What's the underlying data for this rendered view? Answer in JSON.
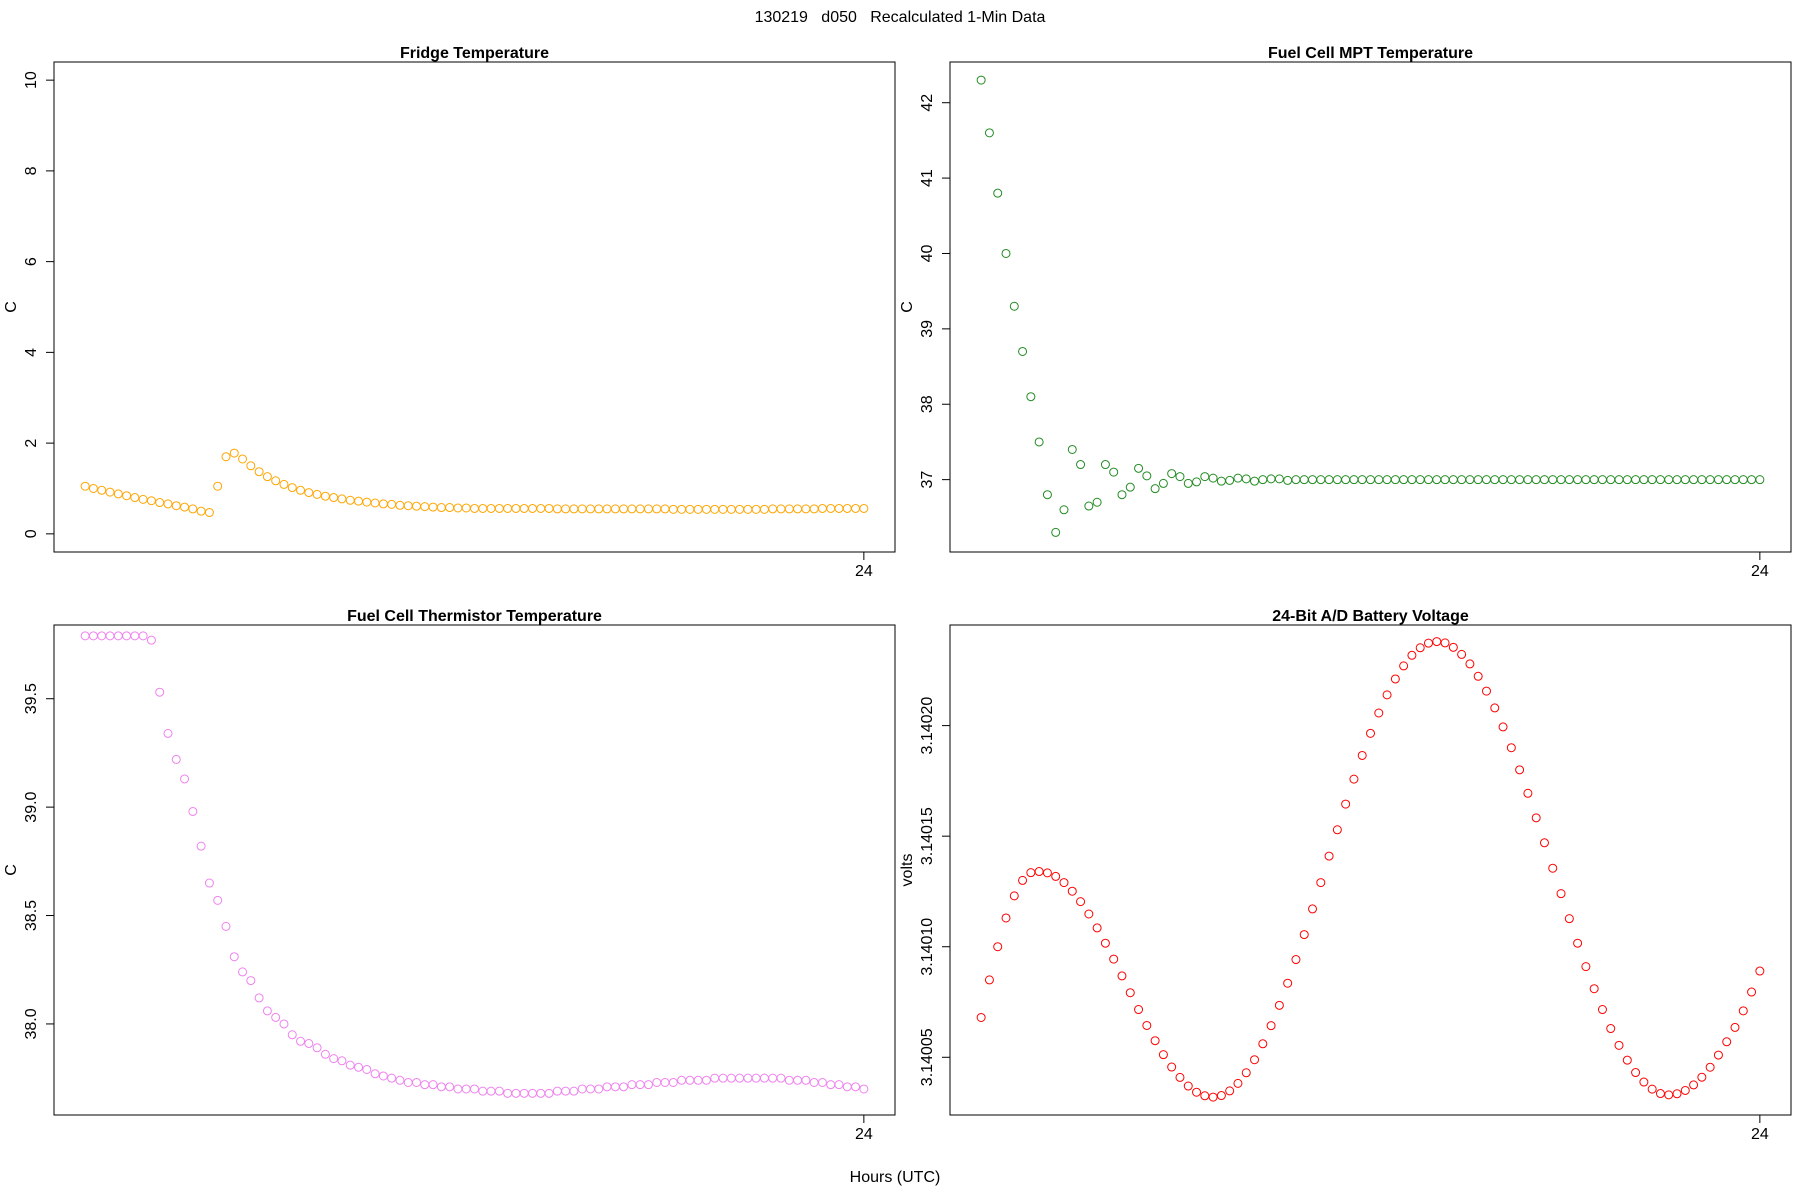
{
  "title": "130219   d050   Recalculated 1-Min Data",
  "xlabel": "Hours (UTC)",
  "chart_data": [
    {
      "type": "scatter",
      "title": "Fridge Temperature",
      "ylabel": "C",
      "color": "#ffa500",
      "xlim": [
        -0.44,
        24.94
      ],
      "xticks": [
        24
      ],
      "ylim": [
        -0.4,
        10.4
      ],
      "yticks": [
        0,
        2,
        4,
        6,
        8,
        10
      ],
      "x": [
        0.5,
        0.75,
        1,
        1.25,
        1.5,
        1.75,
        2,
        2.25,
        2.5,
        2.75,
        3,
        3.25,
        3.5,
        3.75,
        4,
        4.25,
        4.5,
        4.75,
        5,
        5.25,
        5.5,
        5.75,
        6,
        6.25,
        6.5,
        6.75,
        7,
        7.25,
        7.5,
        7.75,
        8,
        8.25,
        8.5,
        8.75,
        9,
        9.25,
        9.5,
        9.75,
        10,
        10.25,
        10.5,
        10.75,
        11,
        11.25,
        11.5,
        11.75,
        12,
        12.25,
        12.5,
        12.75,
        13,
        13.25,
        13.5,
        13.75,
        14,
        14.25,
        14.5,
        14.75,
        15,
        15.25,
        15.5,
        15.75,
        16,
        16.25,
        16.5,
        16.75,
        17,
        17.25,
        17.5,
        17.75,
        18,
        18.25,
        18.5,
        18.75,
        19,
        19.25,
        19.5,
        19.75,
        20,
        20.25,
        20.5,
        20.75,
        21,
        21.25,
        21.5,
        21.75,
        22,
        22.25,
        22.5,
        22.75,
        23,
        23.25,
        23.5,
        23.75,
        24
      ],
      "values": [
        1.05,
        1.0,
        0.96,
        0.92,
        0.88,
        0.84,
        0.8,
        0.76,
        0.73,
        0.69,
        0.66,
        0.62,
        0.59,
        0.55,
        0.5,
        0.47,
        1.05,
        1.7,
        1.78,
        1.65,
        1.5,
        1.37,
        1.26,
        1.17,
        1.09,
        1.02,
        0.96,
        0.91,
        0.87,
        0.83,
        0.8,
        0.77,
        0.74,
        0.72,
        0.7,
        0.68,
        0.66,
        0.65,
        0.63,
        0.62,
        0.61,
        0.6,
        0.59,
        0.58,
        0.58,
        0.57,
        0.57,
        0.56,
        0.56,
        0.56,
        0.56,
        0.56,
        0.56,
        0.56,
        0.56,
        0.56,
        0.56,
        0.55,
        0.55,
        0.55,
        0.55,
        0.55,
        0.55,
        0.55,
        0.55,
        0.55,
        0.55,
        0.55,
        0.55,
        0.55,
        0.55,
        0.54,
        0.54,
        0.54,
        0.54,
        0.54,
        0.54,
        0.54,
        0.54,
        0.54,
        0.54,
        0.54,
        0.54,
        0.55,
        0.55,
        0.55,
        0.55,
        0.55,
        0.55,
        0.56,
        0.56,
        0.56,
        0.56,
        0.56,
        0.56
      ]
    },
    {
      "type": "scatter",
      "title": "Fuel Cell MPT Temperature",
      "ylabel": "C",
      "color": "#228b22",
      "xlim": [
        -0.44,
        24.94
      ],
      "xticks": [
        24
      ],
      "ylim": [
        36.04,
        42.54
      ],
      "yticks": [
        37,
        38,
        39,
        40,
        41,
        42
      ],
      "x": [
        0.5,
        0.75,
        1,
        1.25,
        1.5,
        1.75,
        2,
        2.25,
        2.5,
        2.75,
        3,
        3.25,
        3.5,
        3.75,
        4,
        4.25,
        4.5,
        4.75,
        5,
        5.25,
        5.5,
        5.75,
        6,
        6.25,
        6.5,
        6.75,
        7,
        7.25,
        7.5,
        7.75,
        8,
        8.25,
        8.5,
        8.75,
        9,
        9.25,
        9.5,
        9.75,
        10,
        10.25,
        10.5,
        10.75,
        11,
        11.25,
        11.5,
        11.75,
        12,
        12.25,
        12.5,
        12.75,
        13,
        13.25,
        13.5,
        13.75,
        14,
        14.25,
        14.5,
        14.75,
        15,
        15.25,
        15.5,
        15.75,
        16,
        16.25,
        16.5,
        16.75,
        17,
        17.25,
        17.5,
        17.75,
        18,
        18.25,
        18.5,
        18.75,
        19,
        19.25,
        19.5,
        19.75,
        20,
        20.25,
        20.5,
        20.75,
        21,
        21.25,
        21.5,
        21.75,
        22,
        22.25,
        22.5,
        22.75,
        23,
        23.25,
        23.5,
        23.75,
        24
      ],
      "values": [
        42.3,
        41.6,
        40.8,
        40.0,
        39.3,
        38.7,
        38.1,
        37.5,
        36.8,
        36.3,
        36.6,
        37.4,
        37.2,
        36.65,
        36.7,
        37.2,
        37.1,
        36.8,
        36.9,
        37.15,
        37.05,
        36.88,
        36.95,
        37.08,
        37.04,
        36.95,
        36.97,
        37.04,
        37.02,
        36.98,
        36.99,
        37.02,
        37.01,
        36.98,
        37.0,
        37.01,
        37.01,
        36.99,
        37.0,
        37,
        37,
        37,
        37,
        37,
        37,
        37,
        37,
        37,
        37,
        37,
        37,
        37,
        37,
        37,
        37,
        37,
        37,
        37,
        37,
        37,
        37,
        37,
        37,
        37,
        37,
        37,
        37,
        37,
        37,
        37,
        37,
        37,
        37,
        37,
        37,
        37,
        37,
        37,
        37,
        37,
        37,
        37,
        37,
        37,
        37,
        37,
        37,
        37,
        37,
        37,
        37,
        37,
        37,
        37,
        37
      ]
    },
    {
      "type": "scatter",
      "title": "Fuel Cell Thermistor Temperature",
      "ylabel": "C",
      "color": "#ee82ee",
      "xlim": [
        -0.44,
        24.94
      ],
      "xticks": [
        24
      ],
      "ylim": [
        37.58,
        39.84
      ],
      "yticks": [
        {
          "value": 38,
          "label": "38.0"
        },
        38.5,
        {
          "value": 39,
          "label": "39.0"
        },
        39.5
      ],
      "x": [
        0.5,
        0.75,
        1,
        1.25,
        1.5,
        1.75,
        2,
        2.25,
        2.5,
        2.75,
        3,
        3.25,
        3.5,
        3.75,
        4,
        4.25,
        4.5,
        4.75,
        5,
        5.25,
        5.5,
        5.75,
        6,
        6.25,
        6.5,
        6.75,
        7,
        7.25,
        7.5,
        7.75,
        8,
        8.25,
        8.5,
        8.75,
        9,
        9.25,
        9.5,
        9.75,
        10,
        10.25,
        10.5,
        10.75,
        11,
        11.25,
        11.5,
        11.75,
        12,
        12.25,
        12.5,
        12.75,
        13,
        13.25,
        13.5,
        13.75,
        14,
        14.25,
        14.5,
        14.75,
        15,
        15.25,
        15.5,
        15.75,
        16,
        16.25,
        16.5,
        16.75,
        17,
        17.25,
        17.5,
        17.75,
        18,
        18.25,
        18.5,
        18.75,
        19,
        19.25,
        19.5,
        19.75,
        20,
        20.25,
        20.5,
        20.75,
        21,
        21.25,
        21.5,
        21.75,
        22,
        22.25,
        22.5,
        22.75,
        23,
        23.25,
        23.5,
        23.75,
        24
      ],
      "values": [
        39.79,
        39.79,
        39.79,
        39.79,
        39.79,
        39.79,
        39.79,
        39.79,
        39.77,
        39.53,
        39.34,
        39.22,
        39.13,
        38.98,
        38.82,
        38.65,
        38.57,
        38.45,
        38.31,
        38.24,
        38.2,
        38.12,
        38.06,
        38.03,
        38.0,
        37.95,
        37.92,
        37.91,
        37.89,
        37.86,
        37.84,
        37.83,
        37.81,
        37.8,
        37.79,
        37.77,
        37.76,
        37.75,
        37.74,
        37.73,
        37.73,
        37.72,
        37.72,
        37.71,
        37.71,
        37.7,
        37.7,
        37.7,
        37.69,
        37.69,
        37.69,
        37.68,
        37.68,
        37.68,
        37.68,
        37.68,
        37.68,
        37.69,
        37.69,
        37.69,
        37.7,
        37.7,
        37.7,
        37.71,
        37.71,
        37.71,
        37.72,
        37.72,
        37.72,
        37.73,
        37.73,
        37.73,
        37.74,
        37.74,
        37.74,
        37.74,
        37.75,
        37.75,
        37.75,
        37.75,
        37.75,
        37.75,
        37.75,
        37.75,
        37.75,
        37.74,
        37.74,
        37.74,
        37.73,
        37.73,
        37.72,
        37.72,
        37.71,
        37.71,
        37.7
      ]
    },
    {
      "type": "scatter",
      "title": "24-Bit A/D Battery Voltage",
      "ylabel": "volts",
      "color": "#ff0000",
      "xlim": [
        -0.44,
        24.94
      ],
      "xticks": [
        24
      ],
      "ylim": [
        3.1400239,
        3.1402455
      ],
      "yticks": [
        3.14005,
        {
          "value": 3.1401,
          "label": "3.14010"
        },
        3.14015,
        {
          "value": 3.1402,
          "label": "3.14020"
        }
      ],
      "x": [
        0.5,
        0.75,
        1,
        1.25,
        1.5,
        1.75,
        2,
        2.25,
        2.5,
        2.75,
        3,
        3.25,
        3.5,
        3.75,
        4,
        4.25,
        4.5,
        4.75,
        5,
        5.25,
        5.5,
        5.75,
        6,
        6.25,
        6.5,
        6.75,
        7,
        7.25,
        7.5,
        7.75,
        8,
        8.25,
        8.5,
        8.75,
        9,
        9.25,
        9.5,
        9.75,
        10,
        10.25,
        10.5,
        10.75,
        11,
        11.25,
        11.5,
        11.75,
        12,
        12.25,
        12.5,
        12.75,
        13,
        13.25,
        13.5,
        13.75,
        14,
        14.25,
        14.5,
        14.75,
        15,
        15.25,
        15.5,
        15.75,
        16,
        16.25,
        16.5,
        16.75,
        17,
        17.25,
        17.5,
        17.75,
        18,
        18.25,
        18.5,
        18.75,
        19,
        19.25,
        19.5,
        19.75,
        20,
        20.25,
        20.5,
        20.75,
        21,
        21.25,
        21.5,
        21.75,
        22,
        22.25,
        22.5,
        22.75,
        23,
        23.25,
        23.5,
        23.75,
        24
      ],
      "values": [
        3.140068,
        3.140085,
        3.1401,
        3.140113,
        3.140123,
        3.14013,
        3.1401335,
        3.140134,
        3.1401334,
        3.1401318,
        3.140129,
        3.1401251,
        3.1401204,
        3.1401148,
        3.1401085,
        3.1401016,
        3.1400944,
        3.1400868,
        3.1400792,
        3.1400716,
        3.1400644,
        3.1400575,
        3.1400512,
        3.1400456,
        3.1400409,
        3.140037,
        3.1400342,
        3.1400326,
        3.140032,
        3.1400327,
        3.1400348,
        3.1400382,
        3.140043,
        3.1400489,
        3.1400561,
        3.1400643,
        3.1400735,
        3.1400835,
        3.1400942,
        3.1401055,
        3.1401171,
        3.140129,
        3.140141,
        3.1401529,
        3.1401645,
        3.1401758,
        3.1401865,
        3.1401965,
        3.1402057,
        3.1402139,
        3.1402211,
        3.140227,
        3.1402318,
        3.1402352,
        3.1402373,
        3.140238,
        3.1402374,
        3.1402354,
        3.1402322,
        3.1402279,
        3.1402223,
        3.1402156,
        3.140208,
        3.1401994,
        3.14019,
        3.14018,
        3.1401694,
        3.1401583,
        3.140147,
        3.1401355,
        3.140124,
        3.1401127,
        3.1401016,
        3.140091,
        3.140081,
        3.1400716,
        3.140063,
        3.1400554,
        3.1400487,
        3.1400431,
        3.1400388,
        3.1400356,
        3.1400336,
        3.140033,
        3.1400335,
        3.140035,
        3.1400375,
        3.140041,
        3.1400455,
        3.140051,
        3.140057,
        3.1400635,
        3.140071,
        3.1400795,
        3.140089
      ]
    }
  ]
}
